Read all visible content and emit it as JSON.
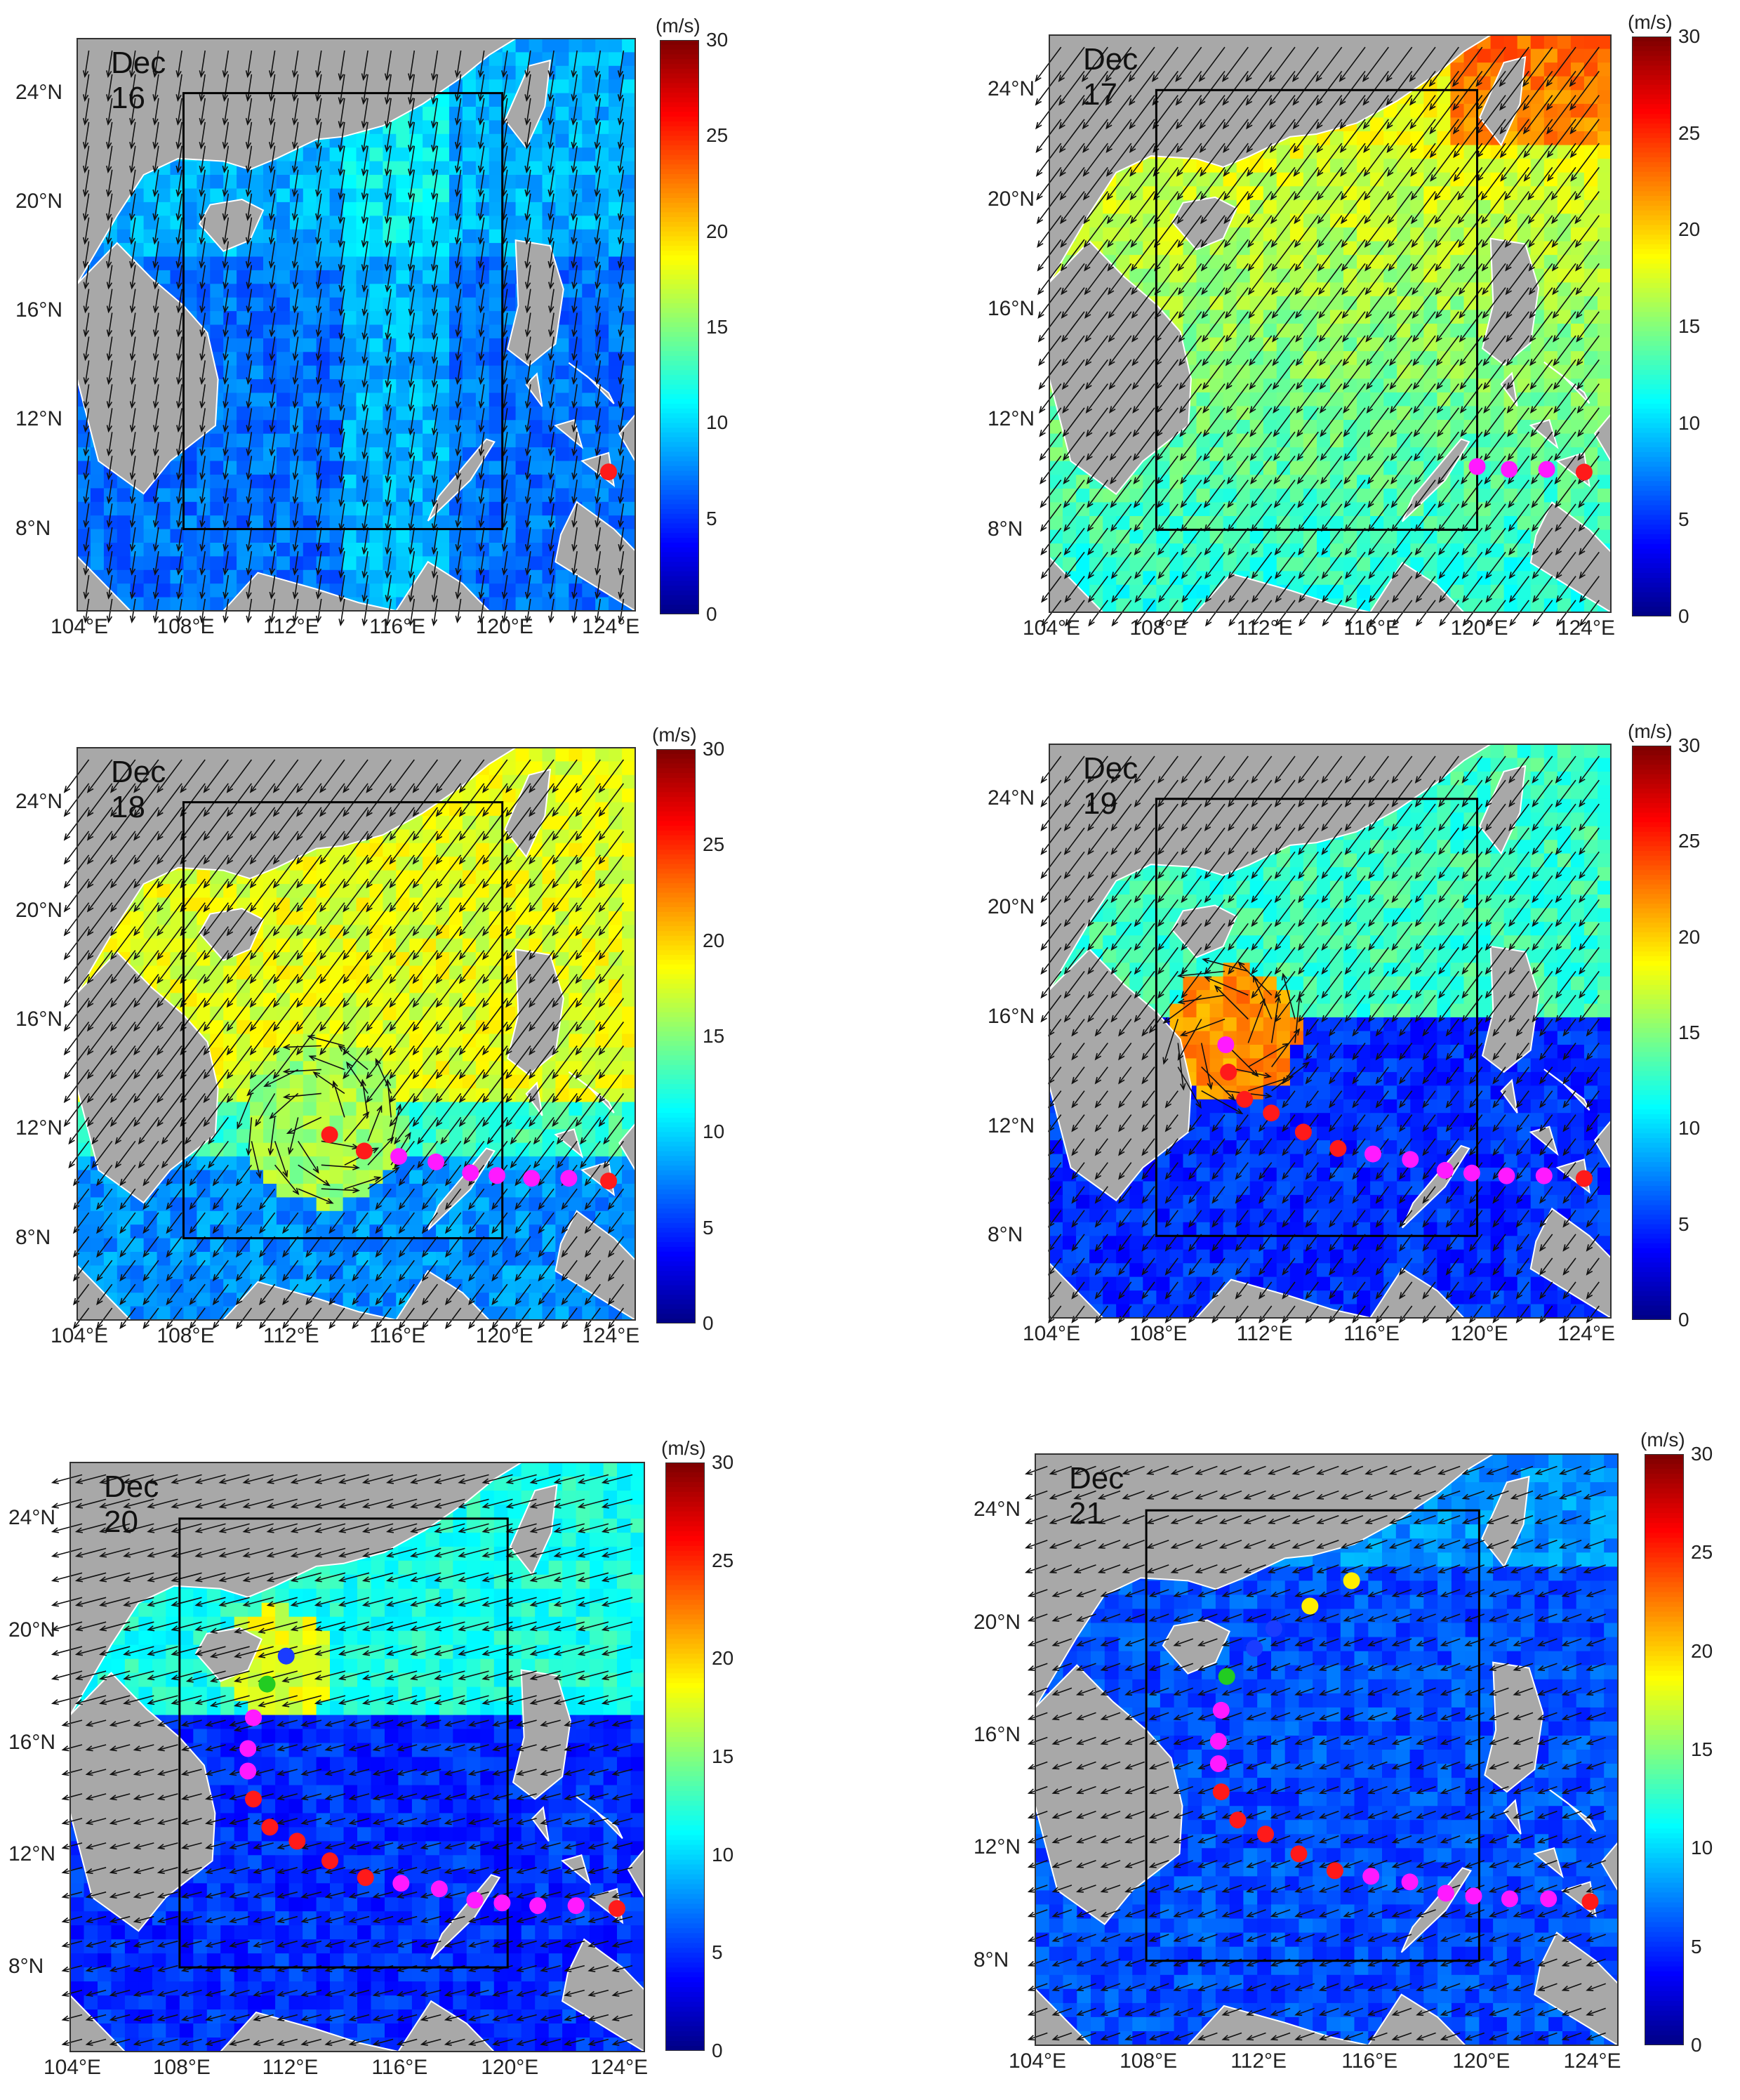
{
  "figure": {
    "colorbar": {
      "unit": "(m/s)",
      "ticks": [
        "0",
        "5",
        "10",
        "15",
        "20",
        "25",
        "30"
      ],
      "min": 0,
      "max": 30
    },
    "lat_ticks": [
      "8°N",
      "12°N",
      "16°N",
      "20°N",
      "24°N"
    ],
    "lon_ticks": [
      "104°E",
      "108°E",
      "112°E",
      "116°E",
      "120°E",
      "124°E"
    ],
    "map_extent": {
      "lon": [
        104,
        125
      ],
      "lat": [
        5,
        26
      ]
    },
    "study_box": {
      "lon": [
        108,
        120
      ],
      "lat": [
        8,
        24
      ]
    },
    "colors": {
      "land": "#a8a8a8",
      "box": "#000000",
      "arrow": "#111111",
      "track_red": "#ff1a1a",
      "track_magenta": "#ff1aff",
      "track_blue": "#1a3cff",
      "track_green": "#22cc22",
      "track_yellow": "#ffee00"
    },
    "panels": [
      {
        "id": "dec16",
        "date": "Dec 16",
        "track": [
          {
            "lon": 124.0,
            "lat": 10.1,
            "c": "track_red"
          }
        ]
      },
      {
        "id": "dec17",
        "date": "Dec 17",
        "track": [
          {
            "lon": 124.0,
            "lat": 10.1,
            "c": "track_red"
          },
          {
            "lon": 122.6,
            "lat": 10.2,
            "c": "track_magenta"
          },
          {
            "lon": 121.2,
            "lat": 10.2,
            "c": "track_magenta"
          },
          {
            "lon": 120.0,
            "lat": 10.3,
            "c": "track_magenta"
          }
        ]
      },
      {
        "id": "dec18",
        "date": "Dec 18",
        "track": [
          {
            "lon": 124.0,
            "lat": 10.1,
            "c": "track_red"
          },
          {
            "lon": 122.5,
            "lat": 10.2,
            "c": "track_magenta"
          },
          {
            "lon": 121.1,
            "lat": 10.2,
            "c": "track_magenta"
          },
          {
            "lon": 119.8,
            "lat": 10.3,
            "c": "track_magenta"
          },
          {
            "lon": 118.8,
            "lat": 10.4,
            "c": "track_magenta"
          },
          {
            "lon": 117.5,
            "lat": 10.8,
            "c": "track_magenta"
          },
          {
            "lon": 116.1,
            "lat": 11.0,
            "c": "track_magenta"
          },
          {
            "lon": 114.8,
            "lat": 11.2,
            "c": "track_red"
          },
          {
            "lon": 113.5,
            "lat": 11.8,
            "c": "track_red"
          }
        ]
      },
      {
        "id": "dec19",
        "date": "Dec 19",
        "track": [
          {
            "lon": 124.0,
            "lat": 10.1,
            "c": "track_red"
          },
          {
            "lon": 122.5,
            "lat": 10.2,
            "c": "track_magenta"
          },
          {
            "lon": 121.1,
            "lat": 10.2,
            "c": "track_magenta"
          },
          {
            "lon": 119.8,
            "lat": 10.3,
            "c": "track_magenta"
          },
          {
            "lon": 118.8,
            "lat": 10.4,
            "c": "track_magenta"
          },
          {
            "lon": 117.5,
            "lat": 10.8,
            "c": "track_magenta"
          },
          {
            "lon": 116.1,
            "lat": 11.0,
            "c": "track_magenta"
          },
          {
            "lon": 114.8,
            "lat": 11.2,
            "c": "track_red"
          },
          {
            "lon": 113.5,
            "lat": 11.8,
            "c": "track_red"
          },
          {
            "lon": 112.3,
            "lat": 12.5,
            "c": "track_red"
          },
          {
            "lon": 111.3,
            "lat": 13.0,
            "c": "track_red"
          },
          {
            "lon": 110.7,
            "lat": 14.0,
            "c": "track_red"
          },
          {
            "lon": 110.6,
            "lat": 15.0,
            "c": "track_magenta"
          }
        ]
      },
      {
        "id": "dec20",
        "date": "Dec 20",
        "track": [
          {
            "lon": 124.0,
            "lat": 10.1,
            "c": "track_red"
          },
          {
            "lon": 122.5,
            "lat": 10.2,
            "c": "track_magenta"
          },
          {
            "lon": 121.1,
            "lat": 10.2,
            "c": "track_magenta"
          },
          {
            "lon": 119.8,
            "lat": 10.3,
            "c": "track_magenta"
          },
          {
            "lon": 118.8,
            "lat": 10.4,
            "c": "track_magenta"
          },
          {
            "lon": 117.5,
            "lat": 10.8,
            "c": "track_magenta"
          },
          {
            "lon": 116.1,
            "lat": 11.0,
            "c": "track_magenta"
          },
          {
            "lon": 114.8,
            "lat": 11.2,
            "c": "track_red"
          },
          {
            "lon": 113.5,
            "lat": 11.8,
            "c": "track_red"
          },
          {
            "lon": 112.3,
            "lat": 12.5,
            "c": "track_red"
          },
          {
            "lon": 111.3,
            "lat": 13.0,
            "c": "track_red"
          },
          {
            "lon": 110.7,
            "lat": 14.0,
            "c": "track_red"
          },
          {
            "lon": 110.5,
            "lat": 15.0,
            "c": "track_magenta"
          },
          {
            "lon": 110.5,
            "lat": 15.8,
            "c": "track_magenta"
          },
          {
            "lon": 110.7,
            "lat": 16.9,
            "c": "track_magenta"
          },
          {
            "lon": 111.2,
            "lat": 18.1,
            "c": "track_green"
          },
          {
            "lon": 111.9,
            "lat": 19.1,
            "c": "track_blue"
          }
        ]
      },
      {
        "id": "dec21",
        "date": "Dec 21",
        "track": [
          {
            "lon": 124.0,
            "lat": 10.1,
            "c": "track_red"
          },
          {
            "lon": 122.5,
            "lat": 10.2,
            "c": "track_magenta"
          },
          {
            "lon": 121.1,
            "lat": 10.2,
            "c": "track_magenta"
          },
          {
            "lon": 119.8,
            "lat": 10.3,
            "c": "track_magenta"
          },
          {
            "lon": 118.8,
            "lat": 10.4,
            "c": "track_magenta"
          },
          {
            "lon": 117.5,
            "lat": 10.8,
            "c": "track_magenta"
          },
          {
            "lon": 116.1,
            "lat": 11.0,
            "c": "track_magenta"
          },
          {
            "lon": 114.8,
            "lat": 11.2,
            "c": "track_red"
          },
          {
            "lon": 113.5,
            "lat": 11.8,
            "c": "track_red"
          },
          {
            "lon": 112.3,
            "lat": 12.5,
            "c": "track_red"
          },
          {
            "lon": 111.3,
            "lat": 13.0,
            "c": "track_red"
          },
          {
            "lon": 110.7,
            "lat": 14.0,
            "c": "track_red"
          },
          {
            "lon": 110.6,
            "lat": 15.0,
            "c": "track_magenta"
          },
          {
            "lon": 110.6,
            "lat": 15.8,
            "c": "track_magenta"
          },
          {
            "lon": 110.7,
            "lat": 16.9,
            "c": "track_magenta"
          },
          {
            "lon": 110.9,
            "lat": 18.1,
            "c": "track_green"
          },
          {
            "lon": 111.9,
            "lat": 19.1,
            "c": "track_blue"
          },
          {
            "lon": 112.6,
            "lat": 19.8,
            "c": "track_blue"
          },
          {
            "lon": 113.9,
            "lat": 20.6,
            "c": "track_yellow"
          },
          {
            "lon": 115.4,
            "lat": 21.5,
            "c": "track_yellow"
          }
        ]
      }
    ]
  }
}
